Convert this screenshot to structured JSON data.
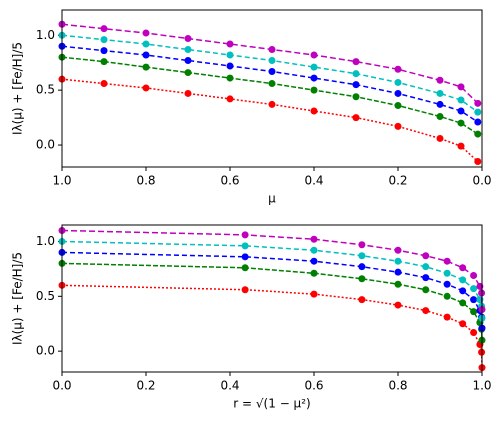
{
  "chart_data": [
    {
      "type": "line",
      "xlabel": "μ",
      "ylabel": "Iλ(μ) + [Fe/H]/5",
      "x": [
        1.0,
        0.9,
        0.8,
        0.7,
        0.6,
        0.5,
        0.4,
        0.3,
        0.2,
        0.1,
        0.05,
        0.01
      ],
      "xlim": [
        1,
        0
      ],
      "ylim": [
        -0.2,
        1.23
      ],
      "xticks": [
        {
          "value": 1,
          "label": "1.0"
        },
        0.8,
        0.6,
        0.4,
        0.2,
        {
          "value": 0,
          "label": "0.0"
        }
      ],
      "yticks": [
        {
          "value": 0,
          "label": "0.0"
        },
        0.5,
        {
          "value": 1,
          "label": "1.0"
        }
      ],
      "series": [
        {
          "color": "#ff0000",
          "values": [
            0.6,
            0.56,
            0.52,
            0.47,
            0.42,
            0.37,
            0.31,
            0.25,
            0.17,
            0.06,
            -0.01,
            -0.15
          ]
        },
        {
          "color": "#008000",
          "values": [
            0.8,
            0.76,
            0.71,
            0.66,
            0.61,
            0.56,
            0.5,
            0.44,
            0.36,
            0.26,
            0.2,
            0.1
          ]
        },
        {
          "color": "#0000ff",
          "values": [
            0.9,
            0.86,
            0.82,
            0.77,
            0.72,
            0.67,
            0.61,
            0.55,
            0.47,
            0.37,
            0.31,
            0.21
          ]
        },
        {
          "color": "#00bfbf",
          "values": [
            1.0,
            0.96,
            0.92,
            0.87,
            0.82,
            0.77,
            0.71,
            0.65,
            0.57,
            0.47,
            0.41,
            0.3
          ]
        },
        {
          "color": "#bf00bf",
          "values": [
            1.1,
            1.06,
            1.02,
            0.97,
            0.92,
            0.87,
            0.82,
            0.76,
            0.69,
            0.59,
            0.53,
            0.38
          ]
        }
      ]
    },
    {
      "type": "line",
      "xlabel": "r = √(1 − μ²)",
      "ylabel": "Iλ(μ) + [Fe/H]/5",
      "x": [
        0.0,
        0.436,
        0.6,
        0.714,
        0.8,
        0.866,
        0.917,
        0.954,
        0.98,
        0.995,
        0.999,
        1.0
      ],
      "xlim": [
        0,
        1
      ],
      "ylim": [
        -0.19,
        1.15
      ],
      "xticks": [
        {
          "value": 0,
          "label": "0.0"
        },
        0.2,
        0.4,
        0.6,
        0.8,
        {
          "value": 1,
          "label": "1.0"
        }
      ],
      "yticks": [
        {
          "value": 0,
          "label": "0.0"
        },
        0.5,
        {
          "value": 1,
          "label": "1.0"
        }
      ],
      "series": [
        {
          "color": "#ff0000",
          "values": [
            0.6,
            0.56,
            0.52,
            0.47,
            0.42,
            0.37,
            0.31,
            0.25,
            0.17,
            0.06,
            -0.01,
            -0.15
          ]
        },
        {
          "color": "#008000",
          "values": [
            0.8,
            0.76,
            0.71,
            0.66,
            0.61,
            0.56,
            0.5,
            0.44,
            0.36,
            0.26,
            0.2,
            0.1
          ]
        },
        {
          "color": "#0000ff",
          "values": [
            0.9,
            0.86,
            0.82,
            0.77,
            0.72,
            0.67,
            0.61,
            0.55,
            0.47,
            0.37,
            0.31,
            0.21
          ]
        },
        {
          "color": "#00bfbf",
          "values": [
            1.0,
            0.96,
            0.92,
            0.87,
            0.82,
            0.77,
            0.71,
            0.65,
            0.57,
            0.47,
            0.41,
            0.3
          ]
        },
        {
          "color": "#bf00bf",
          "values": [
            1.1,
            1.06,
            1.02,
            0.97,
            0.92,
            0.87,
            0.82,
            0.76,
            0.69,
            0.59,
            0.53,
            0.38
          ]
        }
      ]
    }
  ]
}
